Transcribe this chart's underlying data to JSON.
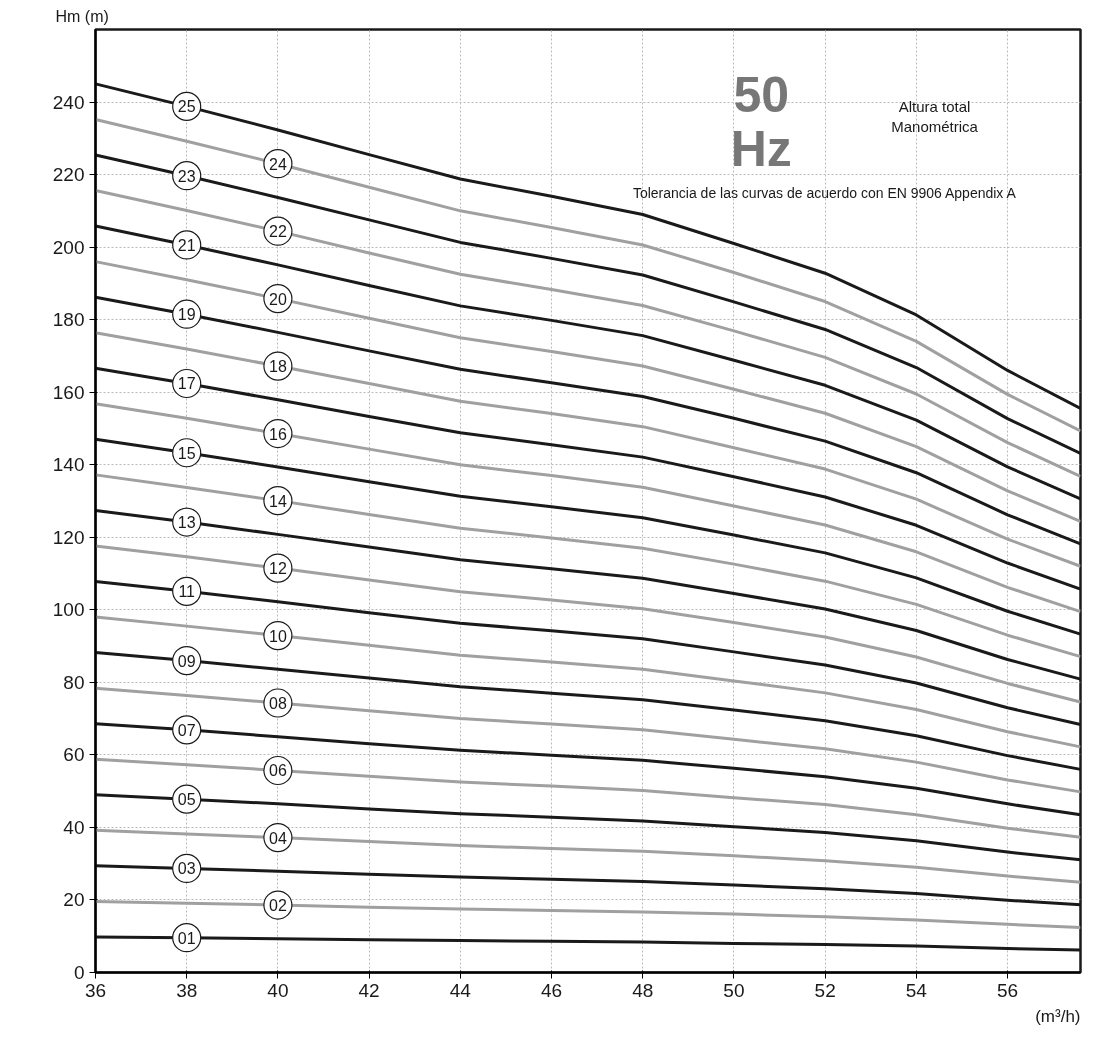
{
  "chart_data": {
    "type": "line",
    "xlabel": "(m³/h)",
    "ylabel": "Hm (m)",
    "annotations": [
      "50",
      "Hz",
      "Altura total\nManométrica",
      "Tolerancia de las curvas de acuerdo con EN 9906 Appendix A"
    ],
    "x": [
      36,
      38,
      40,
      42,
      44,
      46,
      48,
      50,
      52,
      54,
      56,
      57.6
    ],
    "xlim": [
      36,
      57.6
    ],
    "xticks": [
      36,
      38,
      40,
      42,
      44,
      46,
      48,
      50,
      52,
      54,
      56
    ],
    "ylim": [
      0,
      260
    ],
    "yticks": [
      0,
      20,
      40,
      60,
      80,
      100,
      120,
      140,
      160,
      180,
      200,
      220,
      240
    ],
    "grid": true,
    "marker": "none",
    "line_style": "solid",
    "series": [
      {
        "name": "01",
        "color": "#1a1a1a",
        "values": [
          9.8,
          9.6,
          9.3,
          9.0,
          8.8,
          8.6,
          8.4,
          8.0,
          7.7,
          7.3,
          6.6,
          6.2
        ]
      },
      {
        "name": "02",
        "color": "#a0a0a0",
        "values": [
          19.6,
          19.1,
          18.6,
          18.0,
          17.5,
          17.1,
          16.7,
          16.1,
          15.4,
          14.5,
          13.3,
          12.4
        ]
      },
      {
        "name": "03",
        "color": "#1a1a1a",
        "values": [
          29.4,
          28.7,
          27.9,
          27.1,
          26.3,
          25.7,
          25.1,
          24.1,
          23.1,
          21.8,
          19.9,
          18.7
        ]
      },
      {
        "name": "04",
        "color": "#a0a0a0",
        "values": [
          39.2,
          38.2,
          37.2,
          36.1,
          35.0,
          34.2,
          33.4,
          32.2,
          30.8,
          29.0,
          26.6,
          24.9
        ]
      },
      {
        "name": "05",
        "color": "#1a1a1a",
        "values": [
          49.0,
          47.8,
          46.5,
          45.1,
          43.8,
          42.8,
          41.8,
          40.2,
          38.6,
          36.3,
          33.2,
          31.1
        ]
      },
      {
        "name": "06",
        "color": "#a0a0a0",
        "values": [
          58.8,
          57.3,
          55.7,
          54.1,
          52.5,
          51.4,
          50.2,
          48.2,
          46.3,
          43.5,
          39.8,
          37.3
        ]
      },
      {
        "name": "07",
        "color": "#1a1a1a",
        "values": [
          68.6,
          66.9,
          65.0,
          63.1,
          61.3,
          59.9,
          58.5,
          56.3,
          54.0,
          50.8,
          46.5,
          43.5
        ]
      },
      {
        "name": "08",
        "color": "#a0a0a0",
        "values": [
          78.4,
          76.4,
          74.3,
          72.2,
          70.0,
          68.5,
          66.9,
          64.3,
          61.7,
          58.0,
          53.1,
          49.8
        ]
      },
      {
        "name": "09",
        "color": "#1a1a1a",
        "values": [
          88.2,
          86.0,
          83.6,
          81.2,
          78.8,
          77.0,
          75.2,
          72.4,
          69.4,
          65.3,
          59.8,
          56.0
        ]
      },
      {
        "name": "10",
        "color": "#a0a0a0",
        "values": [
          98.0,
          95.5,
          92.9,
          90.2,
          87.5,
          85.6,
          83.6,
          80.4,
          77.1,
          72.5,
          66.4,
          62.2
        ]
      },
      {
        "name": "11",
        "color": "#1a1a1a",
        "values": [
          107.8,
          105.1,
          102.2,
          99.2,
          96.3,
          94.2,
          92.0,
          88.4,
          84.8,
          79.8,
          73.0,
          68.4
        ]
      },
      {
        "name": "12",
        "color": "#a0a0a0",
        "values": [
          117.6,
          114.6,
          111.5,
          108.2,
          105.0,
          102.7,
          100.3,
          96.5,
          92.5,
          87.0,
          79.7,
          74.6
        ]
      },
      {
        "name": "13",
        "color": "#1a1a1a",
        "values": [
          127.4,
          124.2,
          120.8,
          117.3,
          113.8,
          111.3,
          108.7,
          104.5,
          100.2,
          94.3,
          86.3,
          80.9
        ]
      },
      {
        "name": "14",
        "color": "#a0a0a0",
        "values": [
          137.2,
          133.7,
          130.1,
          126.3,
          122.5,
          119.8,
          117.0,
          112.6,
          107.9,
          101.5,
          93.0,
          87.1
        ]
      },
      {
        "name": "15",
        "color": "#1a1a1a",
        "values": [
          147.0,
          143.3,
          139.4,
          135.3,
          131.3,
          128.4,
          125.4,
          120.6,
          115.7,
          108.8,
          99.6,
          93.3
        ]
      },
      {
        "name": "16",
        "color": "#a0a0a0",
        "values": [
          156.8,
          152.8,
          148.6,
          144.3,
          140.0,
          137.0,
          133.8,
          128.6,
          123.4,
          116.0,
          106.2,
          99.5
        ]
      },
      {
        "name": "17",
        "color": "#1a1a1a",
        "values": [
          166.6,
          162.4,
          157.9,
          153.3,
          148.8,
          145.5,
          142.1,
          136.7,
          131.1,
          123.3,
          112.9,
          105.7
        ]
      },
      {
        "name": "18",
        "color": "#a0a0a0",
        "values": [
          176.4,
          171.9,
          167.2,
          162.4,
          157.5,
          154.1,
          150.5,
          144.7,
          138.8,
          130.5,
          119.5,
          112.0
        ]
      },
      {
        "name": "19",
        "color": "#1a1a1a",
        "values": [
          186.2,
          181.5,
          176.5,
          171.4,
          166.3,
          162.6,
          158.8,
          152.8,
          146.5,
          137.8,
          126.2,
          118.2
        ]
      },
      {
        "name": "20",
        "color": "#a0a0a0",
        "values": [
          196.0,
          191.0,
          185.8,
          180.4,
          175.0,
          171.2,
          167.2,
          160.8,
          154.2,
          145.0,
          132.8,
          124.4
        ]
      },
      {
        "name": "21",
        "color": "#1a1a1a",
        "values": [
          205.8,
          200.6,
          195.1,
          189.4,
          183.8,
          179.8,
          175.6,
          168.8,
          161.9,
          152.3,
          139.4,
          130.6
        ]
      },
      {
        "name": "22",
        "color": "#a0a0a0",
        "values": [
          215.6,
          210.1,
          204.4,
          198.4,
          192.5,
          188.3,
          183.9,
          176.9,
          169.6,
          159.5,
          146.1,
          136.8
        ]
      },
      {
        "name": "23",
        "color": "#1a1a1a",
        "values": [
          225.4,
          219.7,
          213.7,
          207.5,
          201.3,
          196.9,
          192.3,
          184.9,
          177.3,
          166.8,
          152.7,
          143.1
        ]
      },
      {
        "name": "24",
        "color": "#a0a0a0",
        "values": [
          235.2,
          229.2,
          223.0,
          216.5,
          210.0,
          205.4,
          200.6,
          193.0,
          185.0,
          174.0,
          159.4,
          149.3
        ]
      },
      {
        "name": "25",
        "color": "#1a1a1a",
        "values": [
          245.0,
          238.8,
          232.3,
          225.5,
          218.8,
          214.0,
          209.0,
          201.0,
          192.8,
          181.3,
          166.0,
          155.5
        ]
      }
    ]
  }
}
